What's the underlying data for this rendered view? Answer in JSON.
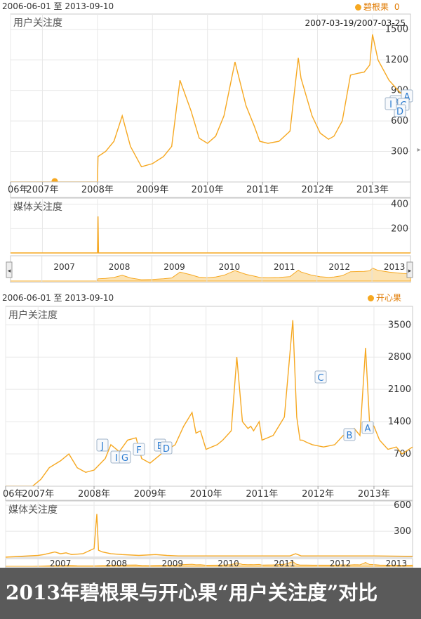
{
  "charts": [
    {
      "date_range": "2006-06-01 至 2013-09-10",
      "legend": "碧根果",
      "legend_extra": "0",
      "tooltip_range": "2007-03-19/2007-03-25",
      "user_label": "用户关注度",
      "media_label": "媒体关注度",
      "markers": [
        "A",
        "B",
        "C",
        "D",
        "I"
      ]
    },
    {
      "date_range": "2006-06-01 至 2013-09-10",
      "legend": "开心果",
      "user_label": "用户关注度",
      "media_label": "媒体关注度",
      "markers": [
        "J",
        "I",
        "G",
        "F",
        "E",
        "D",
        "C",
        "B",
        "A"
      ]
    }
  ],
  "caption": "2013年碧根果与开心果“用户关注度”对比",
  "colors": {
    "line": "#f6a821",
    "fill": "#fce3b3",
    "grid": "#e3e3e3",
    "marker_text": "#2a7bd0",
    "caption_bg": "#5a5a5a"
  },
  "chart_data": [
    {
      "type": "line",
      "title": "碧根果",
      "x_ticks": [
        "06年",
        "2007年",
        "2008年",
        "2009年",
        "2010年",
        "2011年",
        "2012年",
        "2013年"
      ],
      "y_ticks": [
        300,
        600,
        900,
        1200,
        1500
      ],
      "ylim": [
        0,
        1650
      ],
      "series": [
        {
          "name": "碧根果",
          "x": [
            2006.42,
            2007.0,
            2007.2,
            2007.5,
            2008.0,
            2008.01,
            2008.15,
            2008.3,
            2008.45,
            2008.5,
            2008.6,
            2008.8,
            2009.0,
            2009.2,
            2009.35,
            2009.5,
            2009.7,
            2009.85,
            2010.0,
            2010.15,
            2010.3,
            2010.5,
            2010.7,
            2010.85,
            2010.95,
            2011.1,
            2011.3,
            2011.5,
            2011.65,
            2011.7,
            2011.9,
            2012.05,
            2012.2,
            2012.3,
            2012.45,
            2012.6,
            2012.75,
            2012.85,
            2012.95,
            2013.0,
            2013.1,
            2013.3,
            2013.55,
            2013.69
          ],
          "y": [
            0,
            0,
            0,
            0,
            0,
            250,
            300,
            400,
            650,
            550,
            350,
            150,
            180,
            250,
            350,
            1000,
            700,
            430,
            380,
            450,
            650,
            1180,
            750,
            550,
            400,
            380,
            400,
            500,
            1220,
            1020,
            650,
            480,
            420,
            450,
            600,
            1050,
            1070,
            1080,
            1150,
            1450,
            1200,
            1000,
            850,
            800
          ]
        }
      ],
      "media": {
        "ylim": [
          0,
          450
        ],
        "y_ticks": [
          200,
          400
        ],
        "x": [
          2006.42,
          2007.99,
          2008.0,
          2008.01,
          2008.02,
          2013.69
        ],
        "y": [
          0,
          0,
          0,
          300,
          0,
          0
        ]
      },
      "nav_ticks": [
        "2007",
        "2008",
        "2009",
        "2010",
        "2011",
        "2012",
        "2013"
      ]
    },
    {
      "type": "line",
      "title": "开心果",
      "x_ticks": [
        "06年",
        "2007年",
        "2008年",
        "2009年",
        "2010年",
        "2011年",
        "2012年",
        "2013年"
      ],
      "y_ticks": [
        700,
        1400,
        2100,
        2800,
        3500
      ],
      "ylim": [
        0,
        3900
      ],
      "series": [
        {
          "name": "开心果",
          "x": [
            2006.42,
            2006.9,
            2007.05,
            2007.2,
            2007.4,
            2007.55,
            2007.7,
            2007.85,
            2008.0,
            2008.2,
            2008.3,
            2008.45,
            2008.6,
            2008.75,
            2008.85,
            2009.0,
            2009.2,
            2009.45,
            2009.6,
            2009.75,
            2009.82,
            2009.9,
            2010.0,
            2010.2,
            2010.3,
            2010.45,
            2010.55,
            2010.65,
            2010.75,
            2010.8,
            2010.85,
            2010.95,
            2011.0,
            2011.2,
            2011.4,
            2011.55,
            2011.62,
            2011.68,
            2011.72,
            2011.8,
            2011.9,
            2012.1,
            2012.3,
            2012.45,
            2012.55,
            2012.65,
            2012.75,
            2012.85,
            2012.92,
            2013.0,
            2013.1,
            2013.25,
            2013.4,
            2013.5,
            2013.69
          ],
          "y": [
            0,
            0,
            150,
            400,
            550,
            700,
            400,
            300,
            350,
            600,
            900,
            750,
            1000,
            1050,
            600,
            500,
            700,
            900,
            1300,
            1600,
            1150,
            1200,
            800,
            900,
            1000,
            1200,
            2800,
            1400,
            1250,
            1300,
            1200,
            1400,
            1000,
            1100,
            1500,
            3600,
            1500,
            1000,
            1000,
            950,
            900,
            850,
            900,
            1100,
            1000,
            1250,
            1100,
            3000,
            1400,
            1300,
            1000,
            800,
            850,
            700,
            850
          ]
        }
      ],
      "media": {
        "ylim": [
          0,
          650
        ],
        "y_ticks": [
          300,
          600
        ],
        "x": [
          2006.42,
          2007.0,
          2007.1,
          2007.3,
          2007.4,
          2007.5,
          2007.6,
          2007.8,
          2008.0,
          2008.05,
          2008.08,
          2008.15,
          2008.3,
          2008.5,
          2008.8,
          2009.1,
          2009.3,
          2009.5,
          2010.0,
          2010.5,
          2011.0,
          2011.5,
          2011.6,
          2011.7,
          2012.0,
          2012.5,
          2013.0,
          2013.69
        ],
        "y": [
          0,
          20,
          30,
          60,
          40,
          50,
          30,
          40,
          100,
          500,
          80,
          60,
          40,
          30,
          20,
          30,
          20,
          15,
          15,
          15,
          15,
          15,
          40,
          15,
          15,
          15,
          15,
          10
        ]
      },
      "nav_ticks": [
        "2007",
        "2008",
        "2009",
        "2010",
        "2011",
        "2012",
        "2013"
      ]
    }
  ]
}
